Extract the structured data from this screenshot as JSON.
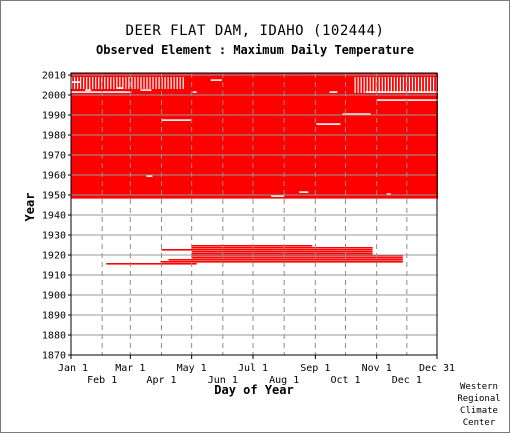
{
  "chart_data": {
    "type": "heatmap",
    "title": "DEER FLAT DAM, IDAHO   (102444)",
    "subtitle": "Observed Element : Maximum Daily Temperature",
    "xlabel": "Day of Year",
    "ylabel": "Year",
    "xlim": [
      1,
      365
    ],
    "ylim": [
      1870,
      2011
    ],
    "x_ticks_top": [
      {
        "label": "Jan 1",
        "day": 1
      },
      {
        "label": "Mar 1",
        "day": 60
      },
      {
        "label": "May 1",
        "day": 121
      },
      {
        "label": "Jul 1",
        "day": 182
      },
      {
        "label": "Sep 1",
        "day": 244
      },
      {
        "label": "Nov 1",
        "day": 305
      },
      {
        "label": "Dec 31",
        "day": 365
      }
    ],
    "x_ticks_bottom": [
      {
        "label": "Feb 1",
        "day": 32
      },
      {
        "label": "Apr 1",
        "day": 91
      },
      {
        "label": "Jun 1",
        "day": 152
      },
      {
        "label": "Aug 1",
        "day": 213
      },
      {
        "label": "Oct 1",
        "day": 274
      },
      {
        "label": "Dec 1",
        "day": 335
      }
    ],
    "y_ticks": [
      1870,
      1880,
      1890,
      1900,
      1910,
      1920,
      1930,
      1940,
      1950,
      1960,
      1970,
      1980,
      1990,
      2000,
      2010
    ],
    "grid": true,
    "data_color": "#ff0000",
    "observed_periods": [
      {
        "start_year": 1948,
        "end_year": 2010,
        "start_day": 1,
        "end_day": 365
      },
      {
        "start_year": 1915,
        "end_year": 1915,
        "start_day": 36,
        "end_day": 125
      },
      {
        "start_year": 1916,
        "end_year": 1916,
        "start_day": 90,
        "end_day": 330
      },
      {
        "start_year": 1917,
        "end_year": 1917,
        "start_day": 98,
        "end_day": 330
      },
      {
        "start_year": 1918,
        "end_year": 1918,
        "start_day": 121,
        "end_day": 330
      },
      {
        "start_year": 1919,
        "end_year": 1919,
        "start_day": 121,
        "end_day": 330
      },
      {
        "start_year": 1920,
        "end_year": 1920,
        "start_day": 121,
        "end_day": 300
      },
      {
        "start_year": 1921,
        "end_year": 1921,
        "start_day": 121,
        "end_day": 300
      },
      {
        "start_year": 1922,
        "end_year": 1922,
        "start_day": 91,
        "end_day": 300
      },
      {
        "start_year": 1923,
        "end_year": 1923,
        "start_day": 121,
        "end_day": 300
      },
      {
        "start_year": 1924,
        "end_year": 1924,
        "start_day": 121,
        "end_day": 240
      }
    ],
    "missing_periods": [
      {
        "year": 1987,
        "start_day": 91,
        "end_day": 119
      },
      {
        "year": 1985,
        "start_day": 245,
        "end_day": 268
      },
      {
        "year": 1990,
        "start_day": 271,
        "end_day": 298
      },
      {
        "year": 1997,
        "start_day": 305,
        "end_day": 365
      },
      {
        "year": 1959,
        "start_day": 76,
        "end_day": 81
      },
      {
        "year": 1951,
        "start_day": 228,
        "end_day": 236
      },
      {
        "year": 1949,
        "start_day": 200,
        "end_day": 212
      },
      {
        "year": 1950,
        "start_day": 315,
        "end_day": 318
      },
      {
        "year": 2001,
        "start_day": 1,
        "end_day": 60
      },
      {
        "year": 2001,
        "start_day": 122,
        "end_day": 125
      },
      {
        "year": 2001,
        "start_day": 258,
        "end_day": 265
      },
      {
        "year": 2001,
        "start_day": 294,
        "end_day": 365
      },
      {
        "year": 2002,
        "start_day": 15,
        "end_day": 20
      },
      {
        "year": 2002,
        "start_day": 70,
        "end_day": 80
      },
      {
        "year": 2003,
        "start_day": 46,
        "end_day": 52
      },
      {
        "year": 2006,
        "start_day": 1,
        "end_day": 9
      },
      {
        "year": 2007,
        "start_day": 140,
        "end_day": 150
      }
    ],
    "sparse_years": [
      {
        "year": 2008,
        "start_day": 1,
        "end_day": 115
      },
      {
        "year": 2006,
        "start_day": 1,
        "end_day": 115
      },
      {
        "year": 2004,
        "start_day": 1,
        "end_day": 115
      },
      {
        "year": 2008,
        "start_day": 283,
        "end_day": 365
      },
      {
        "year": 2006,
        "start_day": 283,
        "end_day": 365
      },
      {
        "year": 2004,
        "start_day": 283,
        "end_day": 365
      },
      {
        "year": 2002,
        "start_day": 283,
        "end_day": 365
      }
    ]
  },
  "credit": [
    "Western",
    "Regional",
    "Climate",
    "Center"
  ]
}
